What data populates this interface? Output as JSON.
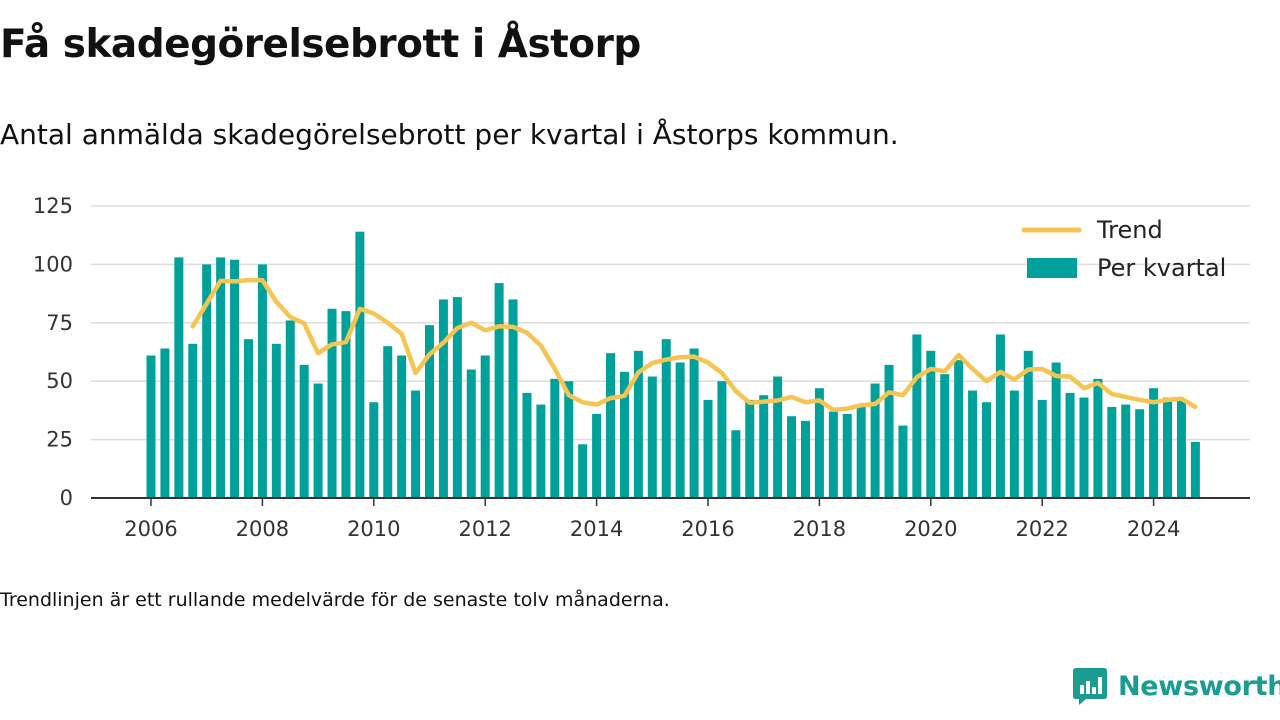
{
  "header": {
    "title": "Få skadegörelsebrott i Åstorp",
    "subtitle": "Antal anmälda skadegörelsebrott per kvartal i Åstorps kommun."
  },
  "footer": {
    "note": "Trendlinjen är ett rullande medelvärde för de senaste tolv månaderna.",
    "brand": "Newsworthy"
  },
  "colors": {
    "bar": "#00a19a",
    "trend": "#f5c452",
    "grid": "#dddddd",
    "axis": "#333333",
    "brand": "#1b9c92"
  },
  "chart_data": {
    "type": "bar",
    "title": "",
    "xlabel": "",
    "ylabel": "",
    "ylim": [
      0,
      125
    ],
    "yticks": [
      0,
      25,
      50,
      75,
      100,
      125
    ],
    "xticks": [
      "2006",
      "2008",
      "2010",
      "2012",
      "2014",
      "2016",
      "2018",
      "2020",
      "2022",
      "2024"
    ],
    "xlim": [
      "2006",
      "2026"
    ],
    "grid": true,
    "legend_position": "top-right",
    "x": [
      "2006Q1",
      "2006Q2",
      "2006Q3",
      "2006Q4",
      "2007Q1",
      "2007Q2",
      "2007Q3",
      "2007Q4",
      "2008Q1",
      "2008Q2",
      "2008Q3",
      "2008Q4",
      "2009Q1",
      "2009Q2",
      "2009Q3",
      "2009Q4",
      "2010Q1",
      "2010Q2",
      "2010Q3",
      "2010Q4",
      "2011Q1",
      "2011Q2",
      "2011Q3",
      "2011Q4",
      "2012Q1",
      "2012Q2",
      "2012Q3",
      "2012Q4",
      "2013Q1",
      "2013Q2",
      "2013Q3",
      "2013Q4",
      "2014Q1",
      "2014Q2",
      "2014Q3",
      "2014Q4",
      "2015Q1",
      "2015Q2",
      "2015Q3",
      "2015Q4",
      "2016Q1",
      "2016Q2",
      "2016Q3",
      "2016Q4",
      "2017Q1",
      "2017Q2",
      "2017Q3",
      "2017Q4",
      "2018Q1",
      "2018Q2",
      "2018Q3",
      "2018Q4",
      "2019Q1",
      "2019Q2",
      "2019Q3",
      "2019Q4",
      "2020Q1",
      "2020Q2",
      "2020Q3",
      "2020Q4",
      "2021Q1",
      "2021Q2",
      "2021Q3",
      "2021Q4",
      "2022Q1",
      "2022Q2",
      "2022Q3",
      "2022Q4",
      "2023Q1",
      "2023Q2",
      "2023Q3",
      "2023Q4",
      "2024Q1",
      "2024Q2",
      "2024Q3",
      "2024Q4"
    ],
    "series": [
      {
        "name": "Per kvartal",
        "type": "bar",
        "values": [
          61,
          64,
          103,
          66,
          100,
          103,
          102,
          68,
          100,
          66,
          76,
          57,
          49,
          81,
          80,
          114,
          41,
          65,
          61,
          46,
          74,
          85,
          86,
          55,
          61,
          92,
          85,
          45,
          40,
          51,
          50,
          23,
          36,
          62,
          54,
          63,
          52,
          68,
          58,
          64,
          42,
          50,
          29,
          42,
          44,
          52,
          35,
          33,
          47,
          37,
          36,
          39,
          49,
          57,
          31,
          70,
          63,
          53,
          59,
          46,
          41,
          70,
          46,
          63,
          42,
          58,
          45,
          43,
          51,
          39,
          40,
          38,
          47,
          43,
          42,
          24
        ]
      },
      {
        "name": "Trend",
        "type": "line",
        "values": [
          null,
          null,
          null,
          73.5,
          83.25,
          93.0,
          92.75,
          93.25,
          93.25,
          84.0,
          77.5,
          74.75,
          62.0,
          65.75,
          66.75,
          81.0,
          79.0,
          75.0,
          70.25,
          53.5,
          61.5,
          66.5,
          72.75,
          75.0,
          71.75,
          73.5,
          73.25,
          70.75,
          65.25,
          55.25,
          44.0,
          41.0,
          40.0,
          42.75,
          43.75,
          53.75,
          57.75,
          59.25,
          60.25,
          60.5,
          58.0,
          53.5,
          45.75,
          40.75,
          41.25,
          41.75,
          43.25,
          41.0,
          41.75,
          37.75,
          38.25,
          39.75,
          40.25,
          45.25,
          44.0,
          51.75,
          55.25,
          54.25,
          61.25,
          55.25,
          50.0,
          54.0,
          50.75,
          55.0,
          55.25,
          52.25,
          52.0,
          47.0,
          49.25,
          44.5,
          43.25,
          42.0,
          41.0,
          42.0,
          42.5,
          39.0
        ]
      }
    ]
  }
}
